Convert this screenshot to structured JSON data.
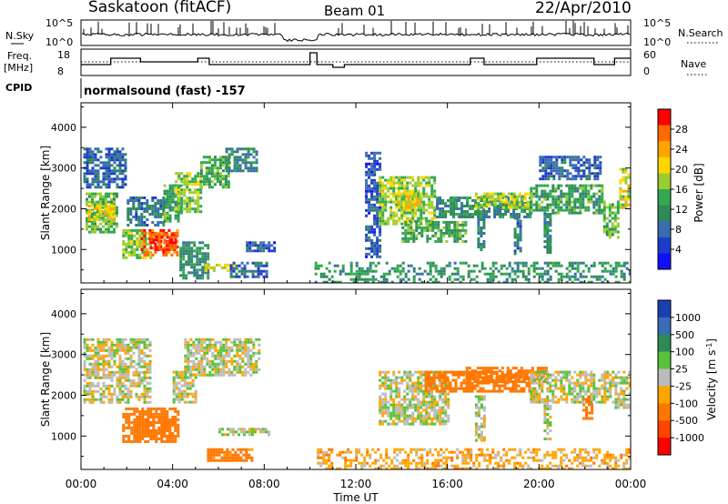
{
  "header": {
    "station": "Saskatoon (fitACF)",
    "beam": "Beam 01",
    "date": "22/Apr/2010"
  },
  "aux_panels": {
    "nsky_label": "N.Sky",
    "nsky_ticks": [
      "10^5",
      "10^0"
    ],
    "nsearch_label": "N.Search",
    "nsearch_ticks": [
      "10^5",
      "10^0"
    ],
    "freq_label_1": "Freq.",
    "freq_label_2": "[MHz]",
    "freq_ticks": [
      "18",
      "8"
    ],
    "nave_label": "Nave",
    "nave_ticks": [
      "60",
      "0"
    ],
    "cpid_label": "CPID",
    "cpid_text": "normalsound (fast) -157"
  },
  "colorbars": {
    "power": {
      "label": "Power [dB]",
      "ticks": [
        "28",
        "24",
        "20",
        "16",
        "12",
        "8",
        "4"
      ],
      "colors": [
        "#ff0000",
        "#ff6a00",
        "#ffa500",
        "#ffd700",
        "#9acd32",
        "#32a852",
        "#2e8b57",
        "#3a6db0",
        "#1e3cc8",
        "#1010ff"
      ]
    },
    "velocity": {
      "label": "Velocity [m s",
      "label_sup": "-1",
      "label_end": "]",
      "ticks": [
        "1000",
        "500",
        "100",
        "25",
        "-25",
        "-100",
        "-500",
        "-1000"
      ],
      "colors": [
        "#1a3fb0",
        "#3a6cb8",
        "#2e8b57",
        "#57c23a",
        "#bbbbbb",
        "#ffa500",
        "#ff7700",
        "#ff4400",
        "#ff0000"
      ]
    }
  },
  "axes": {
    "ylabel": "Slant Range [km]",
    "yticks": [
      "4000",
      "3000",
      "2000",
      "1000"
    ],
    "xticks": [
      "00:00",
      "04:00",
      "08:00",
      "12:00",
      "16:00",
      "20:00",
      "00:00"
    ],
    "xlabel": "Time UT"
  },
  "chart_data": [
    {
      "type": "heatmap",
      "title": "",
      "quantity": "Power [dB]",
      "xlabel": "Time UT",
      "ylabel": "Slant Range [km]",
      "x_range_hours": [
        0,
        24
      ],
      "ylim_km": [
        180,
        4600
      ],
      "clim_db": [
        0,
        30
      ],
      "regions": [
        {
          "t": [
            0.2,
            1.6
          ],
          "r": [
            1400,
            2400
          ],
          "v": 14
        },
        {
          "t": [
            0.3,
            1.4
          ],
          "r": [
            1700,
            2100
          ],
          "v": 20
        },
        {
          "t": [
            0.1,
            2.0
          ],
          "r": [
            2500,
            3500
          ],
          "v": 6
        },
        {
          "t": [
            1.8,
            3.0
          ],
          "r": [
            800,
            1500
          ],
          "v": 16
        },
        {
          "t": [
            2.6,
            4.2
          ],
          "r": [
            850,
            1500
          ],
          "v": 27
        },
        {
          "t": [
            3.0,
            4.1
          ],
          "r": [
            1000,
            1400
          ],
          "v": 29
        },
        {
          "t": [
            2.0,
            3.6
          ],
          "r": [
            1600,
            2300
          ],
          "v": 8
        },
        {
          "t": [
            3.6,
            4.4
          ],
          "r": [
            1700,
            2600
          ],
          "v": 12
        },
        {
          "t": [
            4.1,
            5.2
          ],
          "r": [
            1900,
            2900
          ],
          "v": 16
        },
        {
          "t": [
            5.2,
            6.5
          ],
          "r": [
            2500,
            3300
          ],
          "v": 13
        },
        {
          "t": [
            6.3,
            7.7
          ],
          "r": [
            2900,
            3500
          ],
          "v": 9
        },
        {
          "t": [
            4.3,
            5.6
          ],
          "r": [
            300,
            1200
          ],
          "v": 10
        },
        {
          "t": [
            5.4,
            6.7
          ],
          "r": [
            450,
            650
          ],
          "v": 18
        },
        {
          "t": [
            6.5,
            8.1
          ],
          "r": [
            300,
            700
          ],
          "v": 6
        },
        {
          "t": [
            7.2,
            8.4
          ],
          "r": [
            950,
            1200
          ],
          "v": 5
        },
        {
          "t": [
            10.2,
            24.0
          ],
          "r": [
            200,
            700
          ],
          "v": 11
        },
        {
          "t": [
            12.4,
            13.0
          ],
          "r": [
            800,
            3400
          ],
          "v": 5
        },
        {
          "t": [
            13.0,
            15.5
          ],
          "r": [
            1600,
            2800
          ],
          "v": 16
        },
        {
          "t": [
            13.8,
            14.8
          ],
          "r": [
            2000,
            2400
          ],
          "v": 20
        },
        {
          "t": [
            14.0,
            16.8
          ],
          "r": [
            1200,
            1700
          ],
          "v": 13
        },
        {
          "t": [
            15.5,
            19.6
          ],
          "r": [
            1800,
            2300
          ],
          "v": 10
        },
        {
          "t": [
            17.2,
            19.7
          ],
          "r": [
            2000,
            2400
          ],
          "v": 17
        },
        {
          "t": [
            19.6,
            22.8
          ],
          "r": [
            1900,
            2600
          ],
          "v": 12
        },
        {
          "t": [
            20.0,
            22.7
          ],
          "r": [
            2700,
            3300
          ],
          "v": 6
        },
        {
          "t": [
            17.3,
            17.6
          ],
          "r": [
            1000,
            1900
          ],
          "v": 9
        },
        {
          "t": [
            18.9,
            19.2
          ],
          "r": [
            900,
            1800
          ],
          "v": 8
        },
        {
          "t": [
            20.2,
            20.5
          ],
          "r": [
            900,
            1900
          ],
          "v": 9
        },
        {
          "t": [
            22.8,
            23.5
          ],
          "r": [
            1300,
            2200
          ],
          "v": 14
        },
        {
          "t": [
            23.5,
            24.0
          ],
          "r": [
            2000,
            3000
          ],
          "v": 18
        }
      ]
    },
    {
      "type": "heatmap",
      "title": "",
      "quantity": "Velocity [m s-1]",
      "xlabel": "Time UT",
      "ylabel": "Slant Range [km]",
      "x_range_hours": [
        0,
        24
      ],
      "ylim_km": [
        180,
        4600
      ],
      "clim_ms": [
        -1000,
        1000
      ],
      "regions": [
        {
          "t": [
            0.1,
            3.0
          ],
          "r": [
            1800,
            3400
          ],
          "v": 0
        },
        {
          "t": [
            1.8,
            4.2
          ],
          "r": [
            850,
            1700
          ],
          "v": -200
        },
        {
          "t": [
            2.4,
            4.0
          ],
          "r": [
            1000,
            1500
          ],
          "v": -300
        },
        {
          "t": [
            4.0,
            5.0
          ],
          "r": [
            1800,
            2600
          ],
          "v": 0
        },
        {
          "t": [
            4.5,
            7.8
          ],
          "r": [
            2500,
            3400
          ],
          "v": 0
        },
        {
          "t": [
            5.5,
            7.5
          ],
          "r": [
            400,
            700
          ],
          "v": -150
        },
        {
          "t": [
            6.0,
            8.2
          ],
          "r": [
            1000,
            1200
          ],
          "v": 0
        },
        {
          "t": [
            10.3,
            24.0
          ],
          "r": [
            200,
            700
          ],
          "v": -60
        },
        {
          "t": [
            13.0,
            16.0
          ],
          "r": [
            1300,
            2600
          ],
          "v": 0
        },
        {
          "t": [
            15.0,
            19.8
          ],
          "r": [
            2100,
            2600
          ],
          "v": -200
        },
        {
          "t": [
            16.8,
            20.3
          ],
          "r": [
            2300,
            2700
          ],
          "v": -300
        },
        {
          "t": [
            19.6,
            23.2
          ],
          "r": [
            1800,
            2600
          ],
          "v": 0
        },
        {
          "t": [
            17.2,
            17.6
          ],
          "r": [
            900,
            2000
          ],
          "v": 0
        },
        {
          "t": [
            20.2,
            20.5
          ],
          "r": [
            900,
            1900
          ],
          "v": 0
        },
        {
          "t": [
            21.9,
            22.3
          ],
          "r": [
            1400,
            2000
          ],
          "v": -250
        },
        {
          "t": [
            23.3,
            24.0
          ],
          "r": [
            1700,
            2600
          ],
          "v": 0
        }
      ]
    }
  ]
}
